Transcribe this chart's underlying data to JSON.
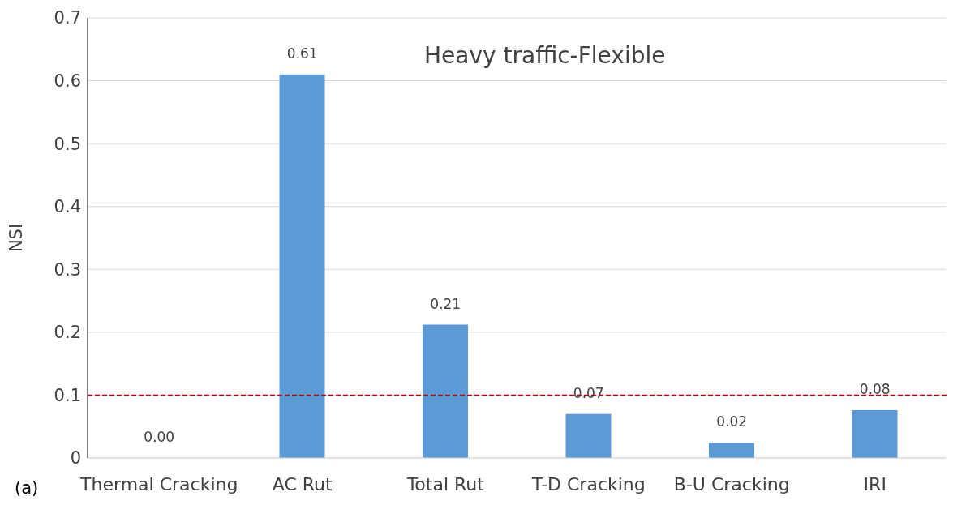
{
  "chart_data": {
    "type": "bar",
    "title": "Heavy traffic-Flexible",
    "ylabel": "NSI",
    "categories": [
      "Thermal Cracking",
      "AC Rut",
      "Total Rut",
      "T-D Cracking",
      "B-U Cracking",
      "IRI"
    ],
    "values": [
      0,
      0.61,
      0.212,
      0.07,
      0.024,
      0.076
    ],
    "value_labels": [
      "0.00",
      "0.61",
      "0.21",
      "0.07",
      "0.02",
      "0.08"
    ],
    "color": "#5b9bd5",
    "ylim": [
      0,
      0.7
    ],
    "yticks": [
      0,
      0.1,
      0.2,
      0.3,
      0.4,
      0.5,
      0.6,
      0.7
    ],
    "grid": "y",
    "ref_lines": [
      {
        "axis": "y",
        "value": 0.1,
        "color": "#c00000",
        "line_style": "dashed"
      }
    ],
    "annotations": [
      "(a)"
    ]
  }
}
